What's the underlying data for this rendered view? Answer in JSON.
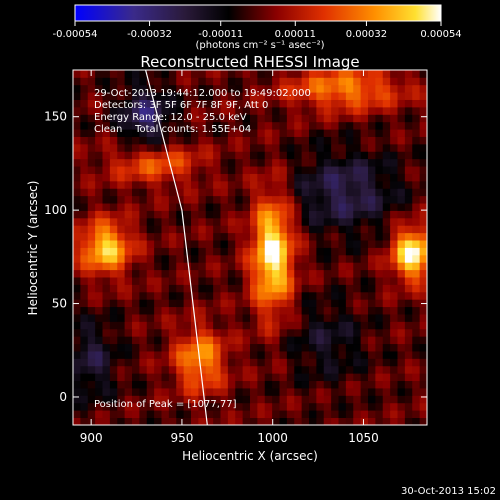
{
  "colorbar": {
    "tick_labels": [
      "-0.00054",
      "-0.00032",
      "-0.00011",
      "0.00011",
      "0.00032",
      "0.00054"
    ],
    "unit_label": "(photons cm⁻² s⁻¹ asec⁻²)"
  },
  "title": "Reconstructed RHESSI Image",
  "annotations": {
    "time_range": "29-Oct-2013 19:44:12.000 to 19:49:02.000",
    "detectors": "Detectors: 3F 5F 6F 7F 8F 9F, Att 0",
    "energy_range": "Energy Range: 12.0 - 25.0 keV",
    "clean_counts": "Clean    Total counts: 1.55E+04",
    "peak_position": "Position of Peak = [1077,77]"
  },
  "footer": {
    "timestamp": "30-Oct-2013 15:02"
  },
  "colors": {
    "background": "#000000",
    "text": "#ffffff",
    "limb_line": "#ffffff"
  },
  "chart_data": {
    "type": "heatmap",
    "title": "Reconstructed RHESSI Image",
    "xlabel": "Heliocentric X (arcsec)",
    "ylabel": "Heliocentric Y (arcsec)",
    "xlim": [
      890,
      1085
    ],
    "ylim": [
      -15,
      175
    ],
    "x_ticks": [
      900,
      950,
      1000,
      1050
    ],
    "y_ticks": [
      0,
      50,
      100,
      150
    ],
    "colorbar_range": [
      -0.00054,
      0.00054
    ],
    "colorbar_ticks": [
      -0.00054,
      -0.00032,
      -0.00011,
      0.00011,
      0.00032,
      0.00054
    ],
    "colormap": "blue-black-red-yellow-white",
    "peak": [
      1077,
      77
    ],
    "limb_line": [
      [
        964,
        -15
      ],
      [
        950,
        100
      ],
      [
        930,
        175
      ]
    ],
    "sources": [
      {
        "x": 1000,
        "y": 77,
        "amp": 0.00054,
        "sx": 8,
        "sy": 22
      },
      {
        "x": 1077,
        "y": 77,
        "amp": 0.00054,
        "sx": 8,
        "sy": 10
      },
      {
        "x": 908,
        "y": 80,
        "amp": 0.00045,
        "sx": 10,
        "sy": 10
      },
      {
        "x": 960,
        "y": 20,
        "amp": 0.00035,
        "sx": 10,
        "sy": 12
      },
      {
        "x": 1040,
        "y": 165,
        "amp": 0.00032,
        "sx": 22,
        "sy": 8
      },
      {
        "x": 935,
        "y": 125,
        "amp": 0.00025,
        "sx": 18,
        "sy": 8
      },
      {
        "x": 1040,
        "y": 110,
        "amp": -0.00025,
        "sx": 20,
        "sy": 15
      },
      {
        "x": 1030,
        "y": 30,
        "amp": -0.00015,
        "sx": 15,
        "sy": 15
      },
      {
        "x": 930,
        "y": 150,
        "amp": -0.0003,
        "sx": 10,
        "sy": 12
      },
      {
        "x": 900,
        "y": 20,
        "amp": -0.0002,
        "sx": 10,
        "sy": 15
      }
    ]
  }
}
